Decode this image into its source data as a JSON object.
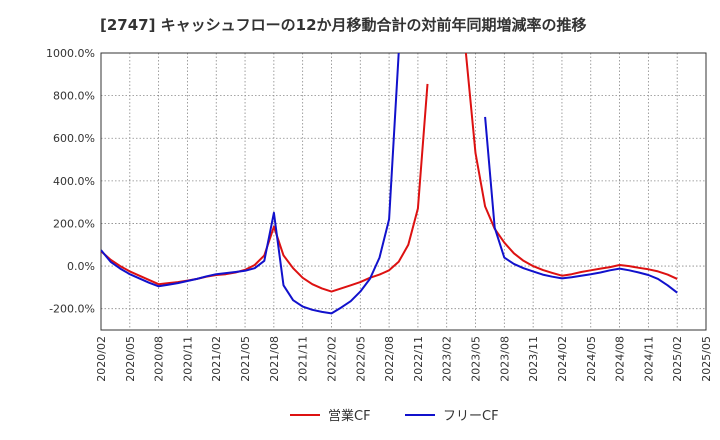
{
  "chart_data": {
    "type": "line",
    "title": "[2747]  キャッシュフローの12か月移動合計の対前年同期増減率の推移",
    "xlabel": "",
    "ylabel": "",
    "x_range": [
      "2020-02",
      "2025-05"
    ],
    "ylim": [
      -300,
      1000
    ],
    "y_ticks": [
      -200,
      0,
      200,
      400,
      600,
      800,
      1000
    ],
    "y_tick_labels": [
      "-200.0%",
      "0.0%",
      "200.0%",
      "400.0%",
      "600.0%",
      "800.0%",
      "1000.0%"
    ],
    "x_ticks": [
      "2020-02",
      "2020-05",
      "2020-08",
      "2020-11",
      "2021-02",
      "2021-05",
      "2021-08",
      "2021-11",
      "2022-02",
      "2022-05",
      "2022-08",
      "2022-11",
      "2023-02",
      "2023-05",
      "2023-08",
      "2023-11",
      "2024-02",
      "2024-05",
      "2024-08",
      "2024-11",
      "2025-02",
      "2025-05"
    ],
    "x_tick_labels": [
      "2020/02",
      "2020/05",
      "2020/08",
      "2020/11",
      "2021/02",
      "2021/05",
      "2021/08",
      "2021/11",
      "2022/02",
      "2022/05",
      "2022/08",
      "2022/11",
      "2023/02",
      "2023/05",
      "2023/08",
      "2023/11",
      "2024/02",
      "2024/05",
      "2024/08",
      "2024/11",
      "2025/02",
      "2025/05"
    ],
    "grid": "dotted",
    "legend_position": "bottom",
    "series": [
      {
        "name": "営業CF",
        "color": "#dd1111",
        "points": [
          [
            "2020-02",
            70
          ],
          [
            "2020-03",
            30
          ],
          [
            "2020-04",
            0
          ],
          [
            "2020-05",
            -25
          ],
          [
            "2020-06",
            -45
          ],
          [
            "2020-07",
            -65
          ],
          [
            "2020-08",
            -85
          ],
          [
            "2020-09",
            -80
          ],
          [
            "2020-10",
            -75
          ],
          [
            "2020-11",
            -68
          ],
          [
            "2020-12",
            -60
          ],
          [
            "2021-01",
            -50
          ],
          [
            "2021-02",
            -42
          ],
          [
            "2021-03",
            -38
          ],
          [
            "2021-04",
            -30
          ],
          [
            "2021-05",
            -18
          ],
          [
            "2021-06",
            5
          ],
          [
            "2021-07",
            50
          ],
          [
            "2021-08",
            185
          ],
          [
            "2021-09",
            50
          ],
          [
            "2021-10",
            -10
          ],
          [
            "2021-11",
            -55
          ],
          [
            "2021-12",
            -85
          ],
          [
            "2022-01",
            -105
          ],
          [
            "2022-02",
            -120
          ],
          [
            "2022-03",
            -105
          ],
          [
            "2022-04",
            -90
          ],
          [
            "2022-05",
            -75
          ],
          [
            "2022-06",
            -55
          ],
          [
            "2022-07",
            -40
          ],
          [
            "2022-08",
            -20
          ],
          [
            "2022-09",
            20
          ],
          [
            "2022-10",
            100
          ],
          [
            "2022-11",
            270
          ],
          [
            "2022-12",
            855
          ],
          null,
          [
            "2023-04",
            1000
          ],
          [
            "2023-05",
            530
          ],
          [
            "2023-06",
            280
          ],
          [
            "2023-07",
            175
          ],
          [
            "2023-08",
            110
          ],
          [
            "2023-09",
            60
          ],
          [
            "2023-10",
            25
          ],
          [
            "2023-11",
            0
          ],
          [
            "2023-12",
            -18
          ],
          [
            "2024-01",
            -32
          ],
          [
            "2024-02",
            -45
          ],
          [
            "2024-03",
            -38
          ],
          [
            "2024-04",
            -28
          ],
          [
            "2024-05",
            -20
          ],
          [
            "2024-06",
            -12
          ],
          [
            "2024-07",
            -5
          ],
          [
            "2024-08",
            5
          ],
          [
            "2024-09",
            0
          ],
          [
            "2024-10",
            -8
          ],
          [
            "2024-11",
            -15
          ],
          [
            "2024-12",
            -25
          ],
          [
            "2025-01",
            -40
          ],
          [
            "2025-02",
            -60
          ]
        ]
      },
      {
        "name": "フリーCF",
        "color": "#1111cc",
        "points": [
          [
            "2020-02",
            75
          ],
          [
            "2020-03",
            20
          ],
          [
            "2020-04",
            -12
          ],
          [
            "2020-05",
            -38
          ],
          [
            "2020-06",
            -58
          ],
          [
            "2020-07",
            -78
          ],
          [
            "2020-08",
            -95
          ],
          [
            "2020-09",
            -88
          ],
          [
            "2020-10",
            -80
          ],
          [
            "2020-11",
            -70
          ],
          [
            "2020-12",
            -60
          ],
          [
            "2021-01",
            -48
          ],
          [
            "2021-02",
            -38
          ],
          [
            "2021-03",
            -33
          ],
          [
            "2021-04",
            -28
          ],
          [
            "2021-05",
            -22
          ],
          [
            "2021-06",
            -10
          ],
          [
            "2021-07",
            25
          ],
          [
            "2021-08",
            250
          ],
          [
            "2021-09",
            -90
          ],
          [
            "2021-10",
            -160
          ],
          [
            "2021-11",
            -190
          ],
          [
            "2021-12",
            -205
          ],
          [
            "2022-01",
            -215
          ],
          [
            "2022-02",
            -222
          ],
          [
            "2022-03",
            -195
          ],
          [
            "2022-04",
            -165
          ],
          [
            "2022-05",
            -120
          ],
          [
            "2022-06",
            -60
          ],
          [
            "2022-07",
            40
          ],
          [
            "2022-08",
            220
          ],
          [
            "2022-09",
            1000
          ],
          null,
          [
            "2023-06",
            700
          ],
          [
            "2023-07",
            180
          ],
          [
            "2023-08",
            40
          ],
          [
            "2023-09",
            10
          ],
          [
            "2023-10",
            -10
          ],
          [
            "2023-11",
            -25
          ],
          [
            "2023-12",
            -40
          ],
          [
            "2024-01",
            -50
          ],
          [
            "2024-02",
            -58
          ],
          [
            "2024-03",
            -52
          ],
          [
            "2024-04",
            -45
          ],
          [
            "2024-05",
            -38
          ],
          [
            "2024-06",
            -30
          ],
          [
            "2024-07",
            -20
          ],
          [
            "2024-08",
            -12
          ],
          [
            "2024-09",
            -20
          ],
          [
            "2024-10",
            -30
          ],
          [
            "2024-11",
            -42
          ],
          [
            "2024-12",
            -60
          ],
          [
            "2025-01",
            -90
          ],
          [
            "2025-02",
            -125
          ]
        ]
      }
    ]
  }
}
